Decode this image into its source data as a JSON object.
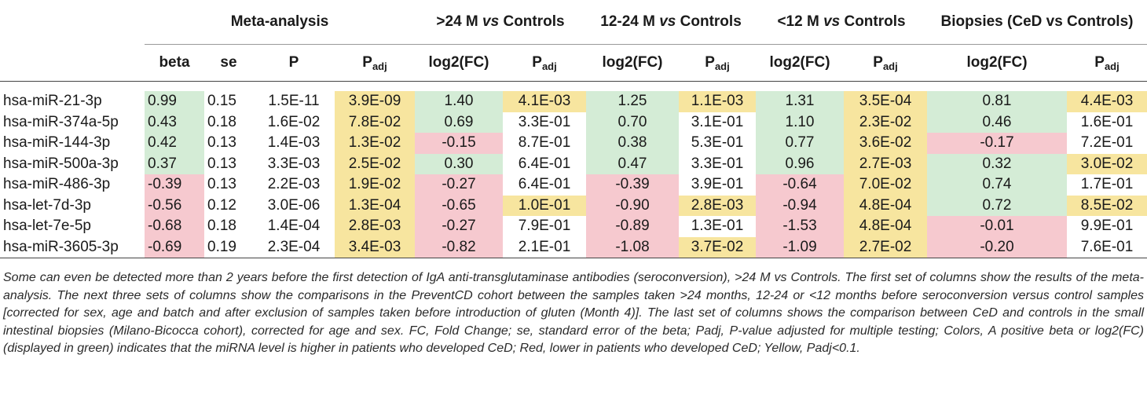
{
  "groups": {
    "meta": "Meta-analysis",
    "g24_pre": ">24 M ",
    "g1224_pre": "12-24 M ",
    "g12_pre": "<12 M ",
    "vs": "vs",
    "controls": " Controls",
    "biopsies": "Biopsies (CeD vs Controls)"
  },
  "subheaders": {
    "beta": "beta",
    "se": "se",
    "p": "P",
    "p_base": "P",
    "adj": "adj",
    "log2fc": "log2(FC)"
  },
  "rows": [
    {
      "label": "hsa-miR-21-3p",
      "beta": "0.99",
      "se": "0.15",
      "p": "1.5E-11",
      "padj": "3.9E-09",
      "fc24": "1.40",
      "p24": "4.1E-03",
      "fc1224": "1.25",
      "p1224": "1.1E-03",
      "fc12": "1.31",
      "p12": "3.5E-04",
      "fcb": "0.81",
      "pb": "4.4E-03"
    },
    {
      "label": "hsa-miR-374a-5p",
      "beta": "0.43",
      "se": "0.18",
      "p": "1.6E-02",
      "padj": "7.8E-02",
      "fc24": "0.69",
      "p24": "3.3E-01",
      "fc1224": "0.70",
      "p1224": "3.1E-01",
      "fc12": "1.10",
      "p12": "2.3E-02",
      "fcb": "0.46",
      "pb": "1.6E-01"
    },
    {
      "label": "hsa-miR-144-3p",
      "beta": "0.42",
      "se": "0.13",
      "p": "1.4E-03",
      "padj": "1.3E-02",
      "fc24": "-0.15",
      "p24": "8.7E-01",
      "fc1224": "0.38",
      "p1224": "5.3E-01",
      "fc12": "0.77",
      "p12": "3.6E-02",
      "fcb": "-0.17",
      "pb": "7.2E-01"
    },
    {
      "label": "hsa-miR-500a-3p",
      "beta": "0.37",
      "se": "0.13",
      "p": "3.3E-03",
      "padj": "2.5E-02",
      "fc24": "0.30",
      "p24": "6.4E-01",
      "fc1224": "0.47",
      "p1224": "3.3E-01",
      "fc12": "0.96",
      "p12": "2.7E-03",
      "fcb": "0.32",
      "pb": "3.0E-02"
    },
    {
      "label": "hsa-miR-486-3p",
      "beta": "-0.39",
      "se": "0.13",
      "p": "2.2E-03",
      "padj": "1.9E-02",
      "fc24": "-0.27",
      "p24": "6.4E-01",
      "fc1224": "-0.39",
      "p1224": "3.9E-01",
      "fc12": "-0.64",
      "p12": "7.0E-02",
      "fcb": "0.74",
      "pb": "1.7E-01"
    },
    {
      "label": "hsa-let-7d-3p",
      "beta": "-0.56",
      "se": "0.12",
      "p": "3.0E-06",
      "padj": "1.3E-04",
      "fc24": "-0.65",
      "p24": "1.0E-01",
      "fc1224": "-0.90",
      "p1224": "2.8E-03",
      "fc12": "-0.94",
      "p12": "4.8E-04",
      "fcb": "0.72",
      "pb": "8.5E-02"
    },
    {
      "label": "hsa-let-7e-5p",
      "beta": "-0.68",
      "se": "0.18",
      "p": "1.4E-04",
      "padj": "2.8E-03",
      "fc24": "-0.27",
      "p24": "7.9E-01",
      "fc1224": "-0.89",
      "p1224": "1.3E-01",
      "fc12": "-1.53",
      "p12": "4.8E-04",
      "fcb": "-0.01",
      "pb": "9.9E-01"
    },
    {
      "label": "hsa-miR-3605-3p",
      "beta": "-0.69",
      "se": "0.19",
      "p": "2.3E-04",
      "padj": "3.4E-03",
      "fc24": "-0.82",
      "p24": "2.1E-01",
      "fc1224": "-1.08",
      "p1224": "3.7E-02",
      "fc12": "-1.09",
      "p12": "2.7E-02",
      "fcb": "-0.20",
      "pb": "7.6E-01"
    }
  ],
  "colors": {
    "positive_green": "#d4ecd6",
    "negative_red": "#f6c9cf",
    "significant_yellow": "#f7e59f"
  },
  "caption": "Some can even be detected more than 2 years before the first detection of IgA anti-transglutaminase antibodies (seroconversion), >24 M vs Controls. The first set of columns show the results of the meta-analysis. The next three sets of columns show the comparisons in the PreventCD cohort between the samples taken >24 months, 12-24 or <12 months before seroconversion versus control samples [corrected for sex, age and batch and after exclusion of samples taken before introduction of gluten (Month 4)]. The last set of columns shows the comparison between CeD and controls in the small intestinal biopsies (Milano-Bicocca cohort), corrected for age and sex. FC, Fold Change; se, standard error of the beta; Padj, P-value adjusted for multiple testing; Colors, A positive beta or log2(FC) (displayed in green) indicates that the miRNA level is higher in patients who developed CeD; Red, lower in patients who developed CeD; Yellow, Padj<0.1."
}
